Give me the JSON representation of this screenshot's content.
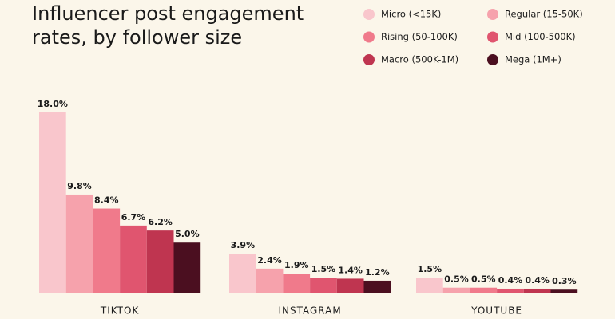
{
  "chart_data": {
    "type": "bar",
    "title": "Influencer post engagement rates, by follower size",
    "categories": [
      "TIKTOK",
      "INSTAGRAM",
      "YOUTUBE"
    ],
    "series": [
      {
        "name": "Micro (<15K)",
        "color": "#f9c6cc",
        "values": [
          18.0,
          3.9,
          1.5
        ],
        "value_labels": [
          "18.0%",
          "3.9%",
          "1.5%"
        ]
      },
      {
        "name": "Regular (15-50K)",
        "color": "#f6a2ac",
        "values": [
          9.8,
          2.4,
          0.5
        ],
        "value_labels": [
          "9.8%",
          "2.4%",
          "0.5%"
        ]
      },
      {
        "name": "Rising (50-100K)",
        "color": "#f07a8b",
        "values": [
          8.4,
          1.9,
          0.5
        ],
        "value_labels": [
          "8.4%",
          "1.9%",
          "0.5%"
        ]
      },
      {
        "name": "Mid (100-500K)",
        "color": "#e0556f",
        "values": [
          6.7,
          1.5,
          0.4
        ],
        "value_labels": [
          "6.7%",
          "1.5%",
          "0.4%"
        ]
      },
      {
        "name": "Macro (500K-1M)",
        "color": "#bf3550",
        "values": [
          6.2,
          1.4,
          0.4
        ],
        "value_labels": [
          "6.2%",
          "1.4%",
          "0.4%"
        ]
      },
      {
        "name": "Mega (1M+)",
        "color": "#4b0f20",
        "values": [
          5.0,
          1.2,
          0.3
        ],
        "value_labels": [
          "5.0%",
          "1.2%",
          "0.3%"
        ]
      }
    ]
  }
}
